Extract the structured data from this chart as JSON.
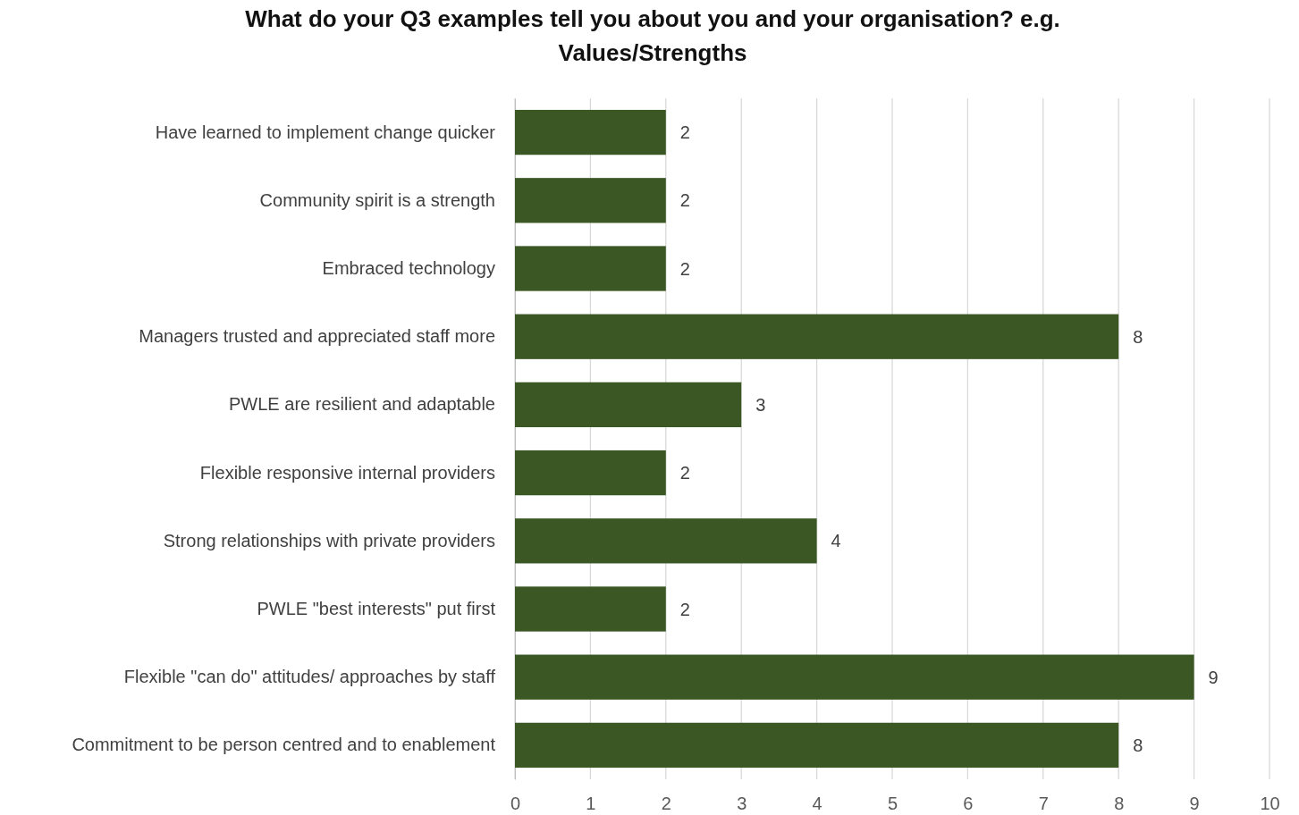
{
  "chart_data": {
    "type": "bar",
    "orientation": "horizontal",
    "title": "What do your Q3 examples tell you about you and your organisation? e.g. Values/Strengths",
    "categories": [
      "Have learned to implement change quicker",
      "Community spirit is a strength",
      "Embraced technology",
      "Managers trusted and appreciated staff more",
      "PWLE are resilient and adaptable",
      "Flexible responsive internal providers",
      "Strong relationships with private providers",
      "PWLE \"best interests\" put first",
      "Flexible \"can do\" attitudes/ approaches by staff",
      "Commitment to be person centred and to enablement"
    ],
    "values": [
      2,
      2,
      2,
      8,
      3,
      2,
      4,
      2,
      9,
      8
    ],
    "color": "#3a5724",
    "xlim": [
      0,
      10
    ],
    "xticks": [
      0,
      1,
      2,
      3,
      4,
      5,
      6,
      7,
      8,
      9,
      10
    ],
    "grid": "x",
    "data_labels": true
  }
}
